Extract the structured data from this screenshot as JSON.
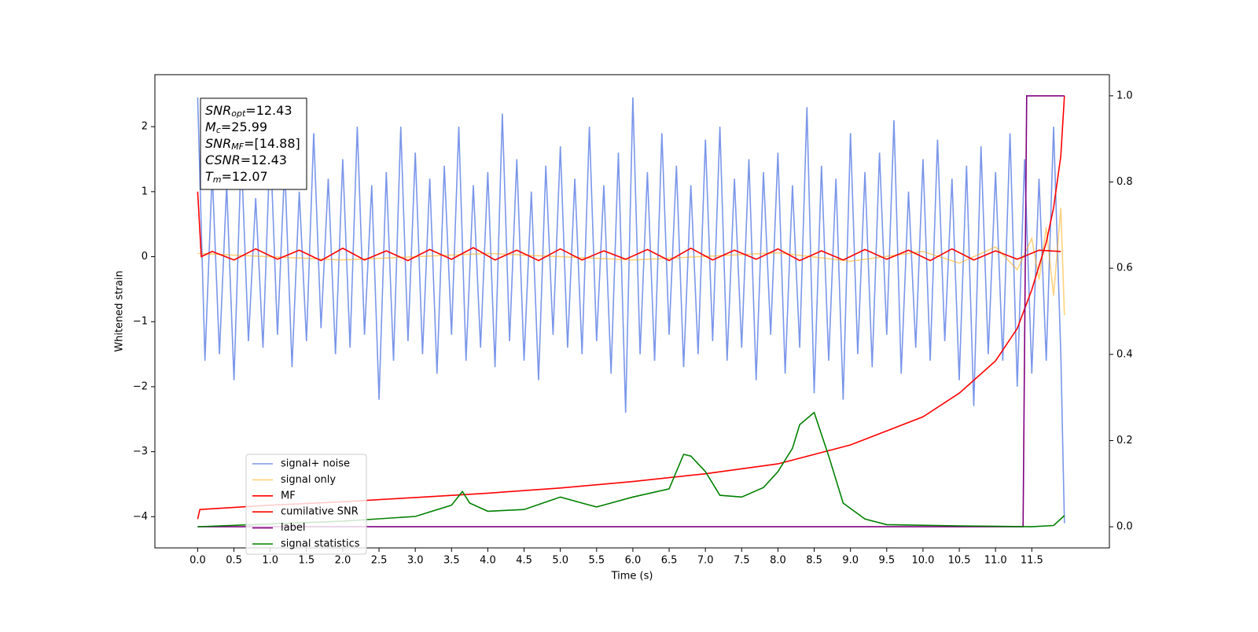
{
  "chart_data": {
    "type": "line",
    "xlabel": "Time (s)",
    "ylabel": "Whitened strain",
    "xlim": [
      -0.59,
      12.57
    ],
    "ylim": [
      -4.48,
      2.8
    ],
    "y2lim": [
      -0.049,
      1.049
    ],
    "xticks": [
      {
        "value": 0,
        "label": "0.0"
      },
      0.5,
      {
        "value": 1,
        "label": "1.0"
      },
      1.5,
      {
        "value": 2,
        "label": "2.0"
      },
      2.5,
      {
        "value": 3,
        "label": "3.0"
      },
      3.5,
      {
        "value": 4,
        "label": "4.0"
      },
      4.5,
      {
        "value": 5,
        "label": "5.0"
      },
      5.5,
      {
        "value": 6,
        "label": "6.0"
      },
      6.5,
      {
        "value": 7,
        "label": "7.0"
      },
      7.5,
      {
        "value": 8,
        "label": "8.0"
      },
      8.5,
      {
        "value": 9,
        "label": "9.0"
      },
      9.5,
      {
        "value": 10,
        "label": "10.0"
      },
      10.5,
      {
        "value": 11,
        "label": "11.0"
      },
      11.5
    ],
    "yticks": [
      {
        "value": -4,
        "label": "−4"
      },
      {
        "value": -3,
        "label": "−3"
      },
      {
        "value": -2,
        "label": "−2"
      },
      {
        "value": -1,
        "label": "−1"
      },
      0,
      1,
      2
    ],
    "y2ticks": [
      {
        "value": 0,
        "label": "0.0"
      },
      0.2,
      0.4,
      0.6,
      0.8,
      {
        "value": 1,
        "label": "1.0"
      }
    ],
    "legend": "lower left",
    "annotation": [
      {
        "symbol": "SNR",
        "sub": "opt",
        "text": "=12.43"
      },
      {
        "symbol": "M",
        "sub": "c",
        "text": "=25.99"
      },
      {
        "symbol": "SNR",
        "sub": "MF",
        "text": "=[14.88]"
      },
      {
        "symbol": "CSNR",
        "text": "=12.43"
      },
      {
        "symbol": "T",
        "sub": "m",
        "text": "=12.07"
      }
    ],
    "series": [
      {
        "name": "signal+ noise",
        "color": "#4169e1",
        "alpha": 0.7,
        "x": [
          0,
          0.1,
          0.2,
          0.3,
          0.4,
          0.5,
          0.6,
          0.7,
          0.8,
          0.9,
          1,
          1.1,
          1.2,
          1.3,
          1.4,
          1.5,
          1.6,
          1.7,
          1.8,
          1.9,
          2,
          2.1,
          2.2,
          2.3,
          2.4,
          2.5,
          2.6,
          2.7,
          2.8,
          2.9,
          3,
          3.1,
          3.2,
          3.3,
          3.4,
          3.5,
          3.6,
          3.7,
          3.8,
          3.9,
          4,
          4.1,
          4.2,
          4.3,
          4.4,
          4.5,
          4.6,
          4.7,
          4.8,
          4.9,
          5,
          5.1,
          5.2,
          5.3,
          5.4,
          5.5,
          5.6,
          5.7,
          5.8,
          5.9,
          6,
          6.1,
          6.2,
          6.3,
          6.4,
          6.5,
          6.6,
          6.7,
          6.8,
          6.9,
          7,
          7.1,
          7.2,
          7.3,
          7.4,
          7.5,
          7.6,
          7.7,
          7.8,
          7.9,
          8,
          8.1,
          8.2,
          8.3,
          8.4,
          8.5,
          8.6,
          8.7,
          8.8,
          8.9,
          9,
          9.1,
          9.2,
          9.3,
          9.4,
          9.5,
          9.6,
          9.7,
          9.8,
          9.9,
          10,
          10.1,
          10.2,
          10.3,
          10.4,
          10.5,
          10.6,
          10.7,
          10.8,
          10.9,
          11,
          11.1,
          11.2,
          11.3,
          11.4,
          11.5,
          11.6,
          11.7,
          11.8,
          11.9,
          11.95
        ],
        "values": [
          2.45,
          -1.6,
          1.3,
          -1.5,
          1.1,
          -1.9,
          1.6,
          -1.3,
          0.9,
          -1.4,
          1.8,
          -1.2,
          1.4,
          -1.7,
          1.0,
          -1.3,
          1.9,
          -1.1,
          1.2,
          -1.5,
          1.5,
          -1.4,
          2.0,
          -1.2,
          1.1,
          -2.2,
          1.3,
          -1.6,
          2.0,
          -1.3,
          1.6,
          -1.5,
          1.2,
          -1.8,
          1.4,
          -1.2,
          2.0,
          -1.6,
          1.1,
          -1.4,
          1.3,
          -1.7,
          2.2,
          -1.3,
          1.5,
          -1.6,
          1.0,
          -1.9,
          1.4,
          -1.2,
          1.7,
          -1.4,
          1.2,
          -1.5,
          2.0,
          -1.3,
          1.1,
          -1.8,
          1.6,
          -2.4,
          2.45,
          -1.5,
          1.3,
          -1.6,
          1.9,
          -1.2,
          1.4,
          -1.7,
          1.1,
          -1.5,
          1.8,
          -1.3,
          2.0,
          -1.6,
          1.2,
          -1.4,
          1.5,
          -1.9,
          1.3,
          -1.2,
          1.6,
          -1.8,
          1.1,
          -1.4,
          2.3,
          -2.1,
          1.4,
          -1.6,
          1.2,
          -2.2,
          1.9,
          -1.5,
          1.3,
          -1.7,
          1.6,
          -1.2,
          2.1,
          -1.8,
          1.0,
          -1.4,
          1.5,
          -1.6,
          1.8,
          -1.3,
          1.2,
          -1.9,
          1.4,
          -2.3,
          1.7,
          -1.5,
          1.3,
          -1.6,
          1.9,
          -2.0,
          1.5,
          -1.8,
          1.2,
          -1.6,
          2.0,
          -1.5,
          -4.1
        ]
      },
      {
        "name": "signal only",
        "color": "#ffa500",
        "alpha": 0.5,
        "x": [
          0,
          2,
          4,
          6,
          8,
          9,
          10,
          10.5,
          11,
          11.3,
          11.5,
          11.6,
          11.7,
          11.8,
          11.9,
          11.95
        ],
        "values": [
          0.05,
          -0.05,
          0.05,
          -0.05,
          0.06,
          -0.07,
          0.08,
          -0.1,
          0.15,
          -0.2,
          0.28,
          -0.35,
          0.45,
          -0.6,
          0.75,
          -0.9
        ]
      },
      {
        "name": "MF",
        "color": "#ff0000",
        "alpha": 1,
        "x": [
          0,
          0.05,
          0.2,
          0.5,
          0.8,
          1.1,
          1.4,
          1.7,
          2.0,
          2.3,
          2.6,
          2.9,
          3.2,
          3.5,
          3.8,
          4.1,
          4.4,
          4.7,
          5.0,
          5.3,
          5.6,
          5.9,
          6.2,
          6.5,
          6.8,
          7.1,
          7.4,
          7.7,
          8.0,
          8.3,
          8.6,
          8.9,
          9.2,
          9.5,
          9.8,
          10.1,
          10.4,
          10.7,
          11.0,
          11.3,
          11.6,
          11.9
        ],
        "values": [
          1.0,
          0.0,
          0.08,
          -0.05,
          0.12,
          -0.04,
          0.1,
          -0.06,
          0.13,
          -0.05,
          0.09,
          -0.06,
          0.11,
          -0.04,
          0.14,
          -0.05,
          0.1,
          -0.06,
          0.12,
          -0.05,
          0.09,
          -0.04,
          0.11,
          -0.06,
          0.13,
          -0.05,
          0.1,
          -0.04,
          0.12,
          -0.06,
          0.09,
          -0.05,
          0.11,
          -0.04,
          0.1,
          -0.06,
          0.12,
          -0.05,
          0.09,
          -0.04,
          0.1,
          0.08
        ]
      },
      {
        "name": "cumilative SNR",
        "color": "#ff0000",
        "alpha": 1,
        "axis": "y2",
        "x": [
          0,
          0.03,
          1,
          2,
          3,
          4,
          5,
          6,
          7,
          8,
          9,
          10,
          10.5,
          11,
          11.3,
          11.5,
          11.7,
          11.8,
          11.9,
          11.95
        ],
        "values": [
          0.018,
          0.04,
          0.05,
          0.058,
          0.068,
          0.078,
          0.09,
          0.105,
          0.123,
          0.146,
          0.19,
          0.255,
          0.31,
          0.385,
          0.46,
          0.55,
          0.66,
          0.74,
          0.86,
          1.0
        ]
      },
      {
        "name": "label",
        "color": "#800080",
        "alpha": 1,
        "axis": "y2",
        "x": [
          0,
          11.38,
          11.43,
          11.95
        ],
        "values": [
          0,
          0,
          1,
          1
        ]
      },
      {
        "name": "signal statistics",
        "color": "#008000",
        "alpha": 1,
        "axis": "y2",
        "x": [
          0,
          2,
          3,
          3.5,
          3.65,
          3.75,
          4,
          4.5,
          5,
          5.3,
          5.5,
          6,
          6.5,
          6.7,
          6.8,
          7,
          7.2,
          7.5,
          7.8,
          8,
          8.2,
          8.3,
          8.5,
          8.7,
          8.9,
          9.2,
          9.5,
          10.5,
          11.5,
          11.8,
          11.95
        ],
        "values": [
          0,
          0.013,
          0.024,
          0.05,
          0.082,
          0.055,
          0.036,
          0.04,
          0.069,
          0.055,
          0.046,
          0.069,
          0.088,
          0.168,
          0.164,
          0.128,
          0.073,
          0.069,
          0.091,
          0.128,
          0.182,
          0.237,
          0.265,
          0.164,
          0.055,
          0.018,
          0.005,
          0.002,
          0,
          0.003,
          0.026
        ]
      }
    ]
  }
}
